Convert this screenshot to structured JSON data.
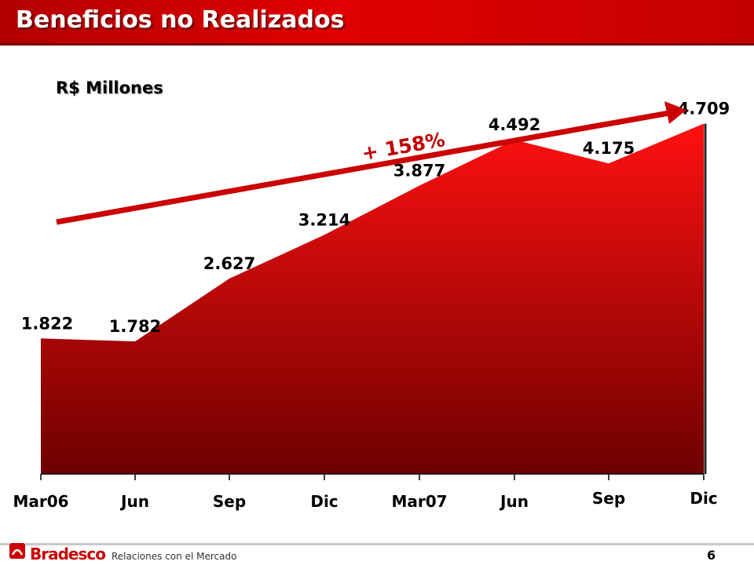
{
  "header": {
    "title": "Beneficios no Realizados"
  },
  "chart_data": {
    "type": "area",
    "title": "Beneficios no Realizados",
    "ylabel": "R$ Millones",
    "categories": [
      "Mar06",
      "Jun",
      "Sep",
      "Dic",
      "Mar07",
      "Jun",
      "Sep",
      "Dic"
    ],
    "values": [
      1822,
      1782,
      2627,
      3214,
      3877,
      4492,
      4175,
      4709
    ],
    "value_labels": [
      "1.822",
      "1.782",
      "2.627",
      "3.214",
      "3.877",
      "4.492",
      "4.175",
      "4.709"
    ],
    "ylim": [
      0,
      5000
    ],
    "annotation": "+ 158%",
    "grid": false,
    "legend": "none",
    "colors": {
      "fill_top": "#ff1010",
      "fill_bottom": "#6e0000",
      "arrow": "#cc0000"
    }
  },
  "footer": {
    "brand": "Bradesco",
    "tagline": "Relaciones con el Mercado",
    "page": "6"
  }
}
